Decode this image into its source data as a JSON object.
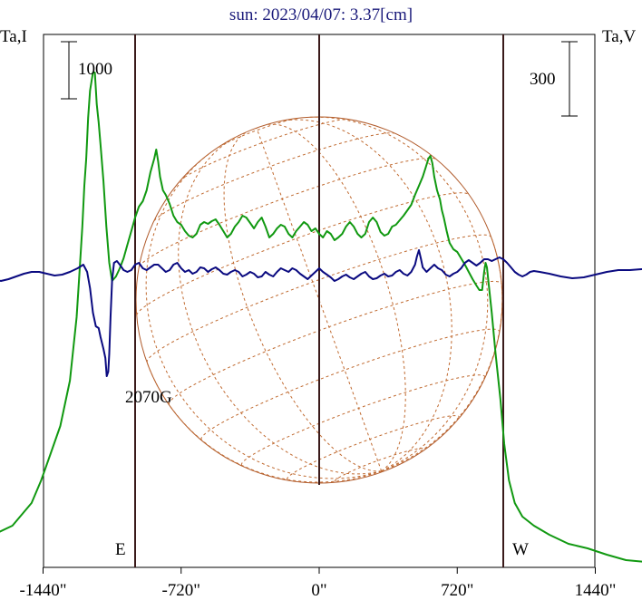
{
  "chart_data": {
    "type": "line",
    "title": "sun: 2023/04/07: 3.37[cm]",
    "left_axis_label": "Ta,I",
    "right_axis_label": "Ta,V",
    "left_scale_bar_label": "1000",
    "right_scale_bar_label": "300",
    "annotation": "2070G",
    "east_label": "E",
    "west_label": "W",
    "xlim": [
      -1800,
      1800
    ],
    "x_ticks": [
      {
        "value": -1440,
        "label": "-1440\""
      },
      {
        "value": -720,
        "label": "-720\""
      },
      {
        "value": 0,
        "label": "0\""
      },
      {
        "value": 720,
        "label": "720\""
      },
      {
        "value": 1440,
        "label": "1440\""
      }
    ],
    "limb_arcsec": 960,
    "series": [
      {
        "key": "I",
        "color": "#119911",
        "points": [
          [
            -1800,
            595
          ],
          [
            -1700,
            590
          ],
          [
            -1600,
            580
          ],
          [
            -1500,
            555
          ],
          [
            -1450,
            530
          ],
          [
            -1400,
            500
          ],
          [
            -1350,
            470
          ],
          [
            -1300,
            420
          ],
          [
            -1265,
            350
          ],
          [
            -1250,
            300
          ],
          [
            -1235,
            250
          ],
          [
            -1225,
            205
          ],
          [
            -1215,
            175
          ],
          [
            -1205,
            130
          ],
          [
            -1195,
            100
          ],
          [
            -1180,
            80
          ],
          [
            -1170,
            80
          ],
          [
            -1160,
            115
          ],
          [
            -1150,
            135
          ],
          [
            -1140,
            160
          ],
          [
            -1125,
            200
          ],
          [
            -1110,
            250
          ],
          [
            -1095,
            290
          ],
          [
            -1080,
            310
          ],
          [
            -1060,
            305
          ],
          [
            -1040,
            296
          ],
          [
            -1020,
            285
          ],
          [
            -1000,
            270
          ],
          [
            -980,
            255
          ],
          [
            -960,
            240
          ],
          [
            -940,
            228
          ],
          [
            -920,
            222
          ],
          [
            -900,
            210
          ],
          [
            -880,
            190
          ],
          [
            -860,
            175
          ],
          [
            -850,
            165
          ],
          [
            -840,
            178
          ],
          [
            -830,
            195
          ],
          [
            -815,
            210
          ],
          [
            -800,
            215
          ],
          [
            -780,
            225
          ],
          [
            -760,
            238
          ],
          [
            -740,
            245
          ],
          [
            -720,
            248
          ],
          [
            -700,
            255
          ],
          [
            -680,
            260
          ],
          [
            -660,
            262
          ],
          [
            -640,
            258
          ],
          [
            -620,
            248
          ],
          [
            -600,
            245
          ],
          [
            -580,
            247
          ],
          [
            -560,
            244
          ],
          [
            -540,
            242
          ],
          [
            -520,
            248
          ],
          [
            -500,
            255
          ],
          [
            -480,
            262
          ],
          [
            -460,
            258
          ],
          [
            -440,
            250
          ],
          [
            -420,
            245
          ],
          [
            -400,
            238
          ],
          [
            -380,
            240
          ],
          [
            -360,
            246
          ],
          [
            -340,
            252
          ],
          [
            -320,
            245
          ],
          [
            -300,
            240
          ],
          [
            -280,
            250
          ],
          [
            -260,
            262
          ],
          [
            -240,
            258
          ],
          [
            -220,
            252
          ],
          [
            -200,
            248
          ],
          [
            -180,
            250
          ],
          [
            -160,
            258
          ],
          [
            -140,
            262
          ],
          [
            -120,
            255
          ],
          [
            -100,
            250
          ],
          [
            -80,
            245
          ],
          [
            -60,
            248
          ],
          [
            -40,
            255
          ],
          [
            -20,
            252
          ],
          [
            0,
            258
          ],
          [
            20,
            262
          ],
          [
            40,
            255
          ],
          [
            60,
            258
          ],
          [
            80,
            265
          ],
          [
            100,
            262
          ],
          [
            120,
            258
          ],
          [
            140,
            250
          ],
          [
            160,
            245
          ],
          [
            180,
            250
          ],
          [
            200,
            258
          ],
          [
            220,
            262
          ],
          [
            240,
            258
          ],
          [
            260,
            245
          ],
          [
            280,
            240
          ],
          [
            300,
            245
          ],
          [
            320,
            256
          ],
          [
            340,
            260
          ],
          [
            360,
            258
          ],
          [
            380,
            250
          ],
          [
            400,
            248
          ],
          [
            420,
            243
          ],
          [
            440,
            238
          ],
          [
            460,
            232
          ],
          [
            480,
            226
          ],
          [
            500,
            215
          ],
          [
            520,
            205
          ],
          [
            540,
            195
          ],
          [
            555,
            185
          ],
          [
            570,
            175
          ],
          [
            580,
            172
          ],
          [
            590,
            180
          ],
          [
            600,
            195
          ],
          [
            615,
            210
          ],
          [
            630,
            220
          ],
          [
            640,
            232
          ],
          [
            650,
            240
          ],
          [
            665,
            255
          ],
          [
            680,
            268
          ],
          [
            700,
            275
          ],
          [
            720,
            278
          ],
          [
            740,
            285
          ],
          [
            760,
            292
          ],
          [
            780,
            300
          ],
          [
            800,
            308
          ],
          [
            820,
            315
          ],
          [
            835,
            320
          ],
          [
            850,
            320
          ],
          [
            860,
            300
          ],
          [
            868,
            290
          ],
          [
            875,
            295
          ],
          [
            885,
            315
          ],
          [
            900,
            345
          ],
          [
            920,
            390
          ],
          [
            945,
            440
          ],
          [
            965,
            490
          ],
          [
            990,
            530
          ],
          [
            1020,
            555
          ],
          [
            1060,
            570
          ],
          [
            1120,
            580
          ],
          [
            1200,
            590
          ],
          [
            1300,
            600
          ],
          [
            1400,
            605
          ],
          [
            1500,
            612
          ],
          [
            1600,
            618
          ],
          [
            1700,
            620
          ],
          [
            1800,
            620
          ]
        ]
      },
      {
        "key": "V",
        "color": "#0a0a80",
        "points": [
          [
            -1800,
            298
          ],
          [
            -1740,
            300
          ],
          [
            -1700,
            308
          ],
          [
            -1660,
            310
          ],
          [
            -1620,
            308
          ],
          [
            -1580,
            305
          ],
          [
            -1540,
            302
          ],
          [
            -1500,
            300
          ],
          [
            -1460,
            300
          ],
          [
            -1420,
            302
          ],
          [
            -1380,
            304
          ],
          [
            -1340,
            303
          ],
          [
            -1300,
            300
          ],
          [
            -1260,
            296
          ],
          [
            -1230,
            292
          ],
          [
            -1210,
            300
          ],
          [
            -1195,
            318
          ],
          [
            -1180,
            345
          ],
          [
            -1165,
            360
          ],
          [
            -1150,
            362
          ],
          [
            -1140,
            372
          ],
          [
            -1125,
            385
          ],
          [
            -1115,
            395
          ],
          [
            -1108,
            415
          ],
          [
            -1100,
            410
          ],
          [
            -1095,
            390
          ],
          [
            -1088,
            350
          ],
          [
            -1080,
            310
          ],
          [
            -1070,
            290
          ],
          [
            -1055,
            288
          ],
          [
            -1040,
            292
          ],
          [
            -1020,
            298
          ],
          [
            -1000,
            300
          ],
          [
            -980,
            298
          ],
          [
            -960,
            292
          ],
          [
            -940,
            290
          ],
          [
            -920,
            296
          ],
          [
            -900,
            298
          ],
          [
            -880,
            295
          ],
          [
            -860,
            292
          ],
          [
            -840,
            292
          ],
          [
            -820,
            296
          ],
          [
            -800,
            300
          ],
          [
            -780,
            298
          ],
          [
            -760,
            292
          ],
          [
            -740,
            290
          ],
          [
            -720,
            296
          ],
          [
            -700,
            300
          ],
          [
            -680,
            298
          ],
          [
            -660,
            302
          ],
          [
            -640,
            300
          ],
          [
            -620,
            295
          ],
          [
            -600,
            296
          ],
          [
            -580,
            300
          ],
          [
            -560,
            297
          ],
          [
            -540,
            295
          ],
          [
            -520,
            298
          ],
          [
            -500,
            302
          ],
          [
            -480,
            303
          ],
          [
            -460,
            300
          ],
          [
            -440,
            298
          ],
          [
            -420,
            300
          ],
          [
            -400,
            305
          ],
          [
            -380,
            303
          ],
          [
            -360,
            300
          ],
          [
            -340,
            302
          ],
          [
            -320,
            306
          ],
          [
            -300,
            305
          ],
          [
            -280,
            300
          ],
          [
            -260,
            303
          ],
          [
            -240,
            305
          ],
          [
            -220,
            300
          ],
          [
            -200,
            296
          ],
          [
            -180,
            298
          ],
          [
            -160,
            300
          ],
          [
            -140,
            296
          ],
          [
            -120,
            298
          ],
          [
            -100,
            302
          ],
          [
            -80,
            305
          ],
          [
            -60,
            308
          ],
          [
            -40,
            304
          ],
          [
            -20,
            300
          ],
          [
            0,
            296
          ],
          [
            20,
            300
          ],
          [
            40,
            303
          ],
          [
            60,
            306
          ],
          [
            80,
            310
          ],
          [
            100,
            308
          ],
          [
            120,
            305
          ],
          [
            140,
            303
          ],
          [
            160,
            306
          ],
          [
            180,
            308
          ],
          [
            200,
            305
          ],
          [
            220,
            302
          ],
          [
            240,
            300
          ],
          [
            260,
            305
          ],
          [
            280,
            308
          ],
          [
            300,
            307
          ],
          [
            320,
            304
          ],
          [
            340,
            302
          ],
          [
            360,
            305
          ],
          [
            380,
            304
          ],
          [
            400,
            300
          ],
          [
            420,
            298
          ],
          [
            440,
            302
          ],
          [
            460,
            304
          ],
          [
            480,
            300
          ],
          [
            500,
            292
          ],
          [
            510,
            283
          ],
          [
            520,
            276
          ],
          [
            530,
            285
          ],
          [
            540,
            295
          ],
          [
            560,
            300
          ],
          [
            580,
            296
          ],
          [
            600,
            292
          ],
          [
            620,
            296
          ],
          [
            640,
            298
          ],
          [
            660,
            303
          ],
          [
            680,
            305
          ],
          [
            700,
            302
          ],
          [
            720,
            300
          ],
          [
            740,
            296
          ],
          [
            760,
            290
          ],
          [
            780,
            287
          ],
          [
            800,
            290
          ],
          [
            820,
            293
          ],
          [
            840,
            290
          ],
          [
            860,
            286
          ],
          [
            880,
            286
          ],
          [
            900,
            288
          ],
          [
            920,
            286
          ],
          [
            940,
            284
          ],
          [
            960,
            286
          ],
          [
            980,
            290
          ],
          [
            1000,
            295
          ],
          [
            1020,
            300
          ],
          [
            1040,
            303
          ],
          [
            1060,
            305
          ],
          [
            1080,
            303
          ],
          [
            1100,
            300
          ],
          [
            1120,
            299
          ],
          [
            1150,
            300
          ],
          [
            1200,
            302
          ],
          [
            1260,
            305
          ],
          [
            1320,
            307
          ],
          [
            1380,
            306
          ],
          [
            1440,
            303
          ],
          [
            1500,
            300
          ],
          [
            1560,
            298
          ],
          [
            1620,
            298
          ],
          [
            1680,
            297
          ],
          [
            1740,
            297
          ],
          [
            1800,
            297
          ]
        ]
      }
    ]
  }
}
